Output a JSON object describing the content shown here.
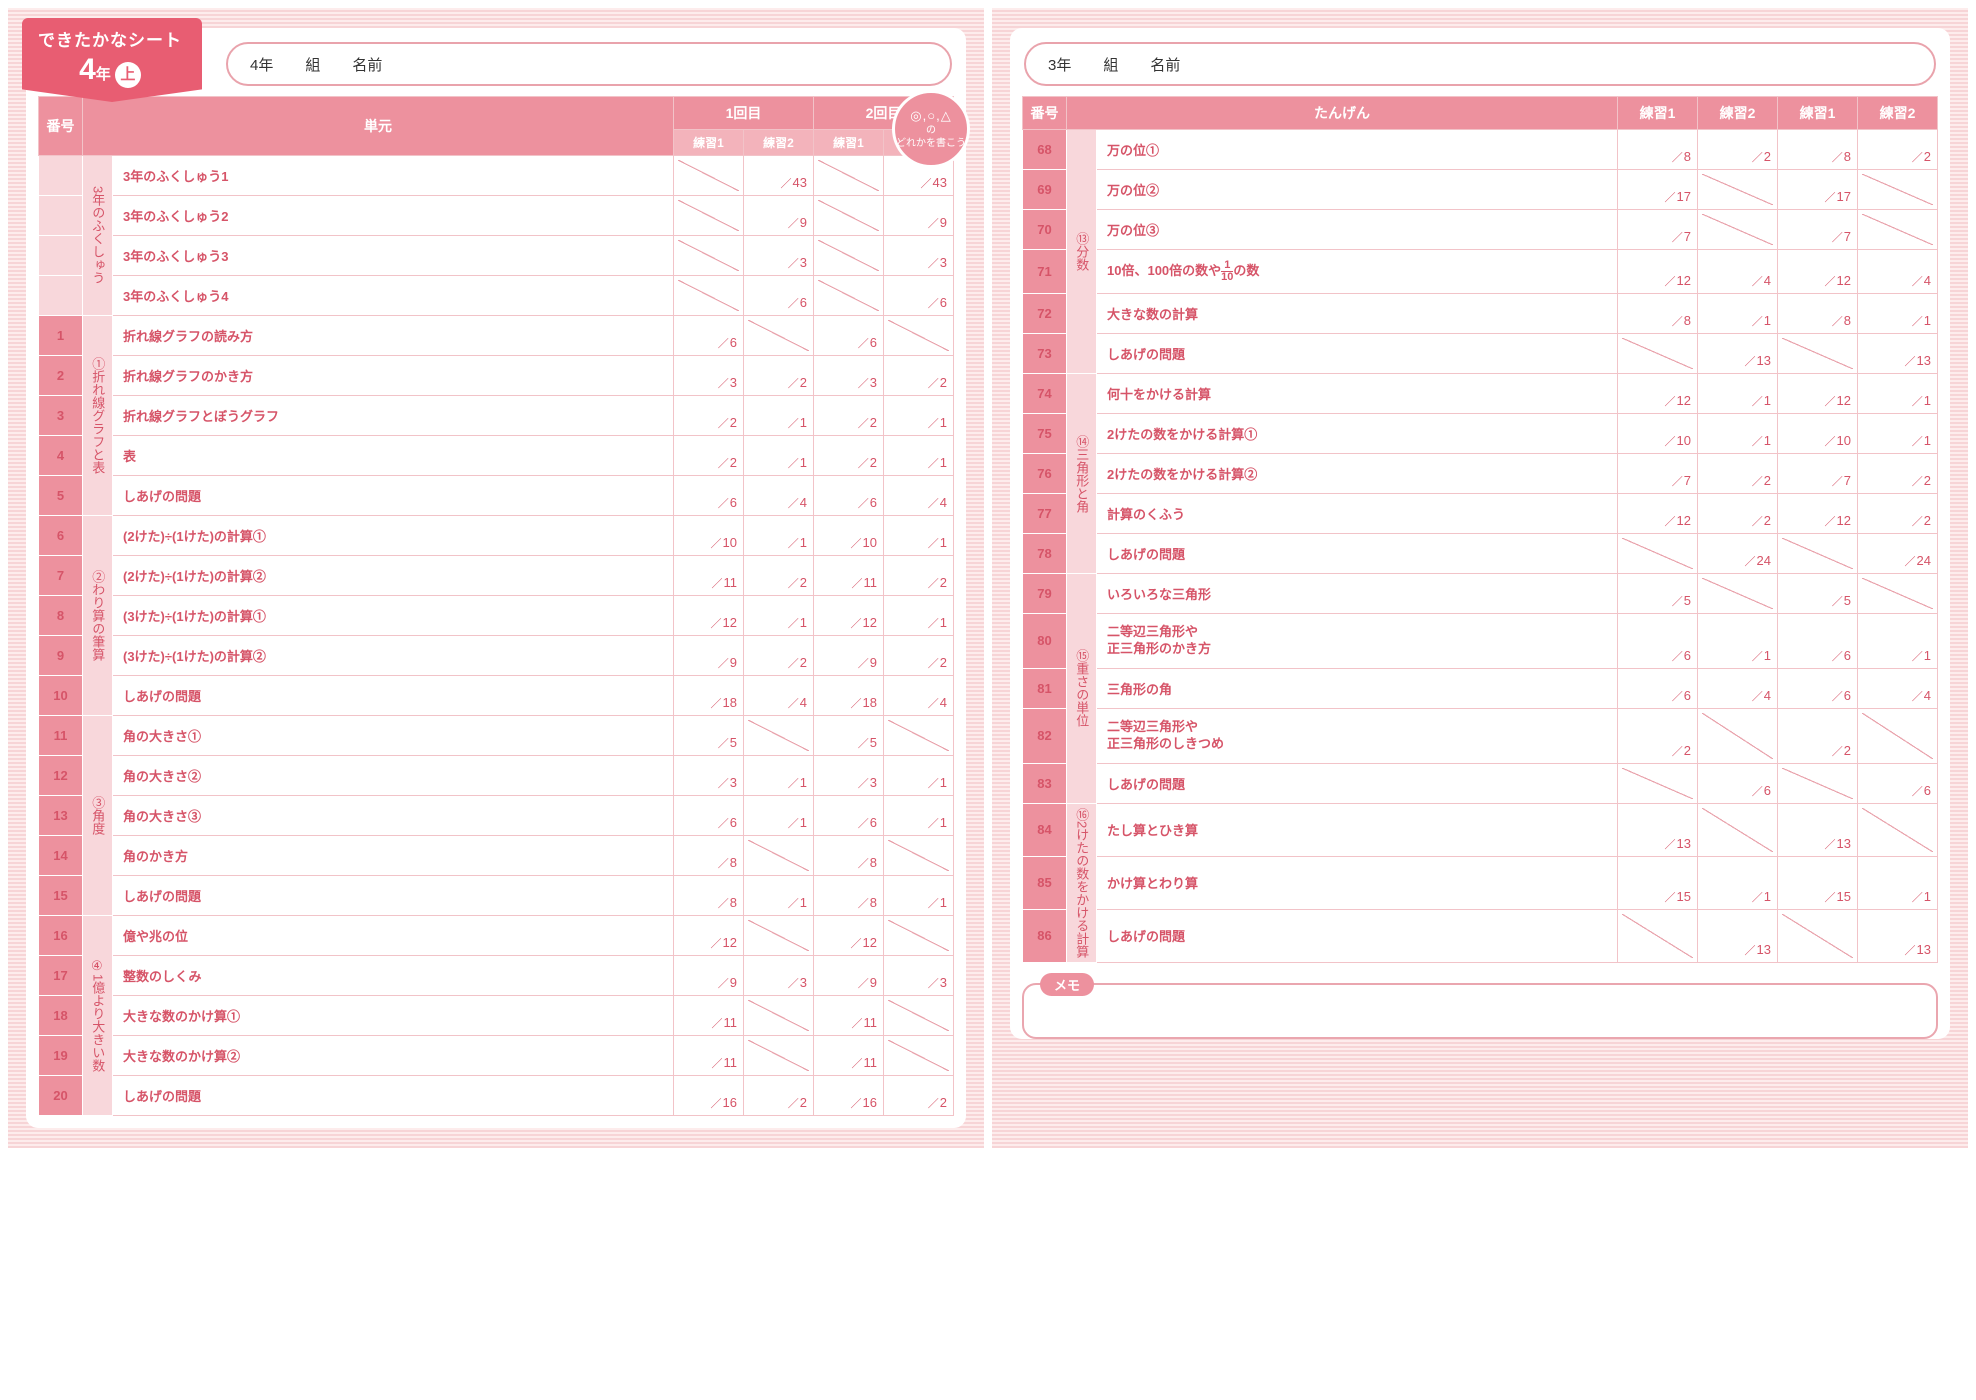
{
  "colors": {
    "accent": "#e85d72",
    "header_bg": "#ed919e",
    "subheader_bg": "#f3b3bb",
    "cat_bg": "#f8d7db",
    "border": "#f2c3c8",
    "text": "#d65468"
  },
  "left": {
    "ribbon": {
      "line1": "できたかなシート",
      "grade_big": "4",
      "grade_suffix": "年",
      "circle": "上"
    },
    "name_field": {
      "grade": "4年",
      "class": "組",
      "name": "名前"
    },
    "headers": {
      "num": "番号",
      "unit": "単元",
      "g1": "1回目",
      "g2": "2回目",
      "p1": "練習1",
      "p2": "練習2"
    },
    "badge": {
      "symbols": "◎,○,△",
      "suffix": "の",
      "line2": "どれかを書こう"
    },
    "categories": [
      {
        "label": "3年のふくしゅう",
        "start": 0,
        "span": 4
      },
      {
        "label": "①折れ線グラフと表",
        "start": 4,
        "span": 5
      },
      {
        "label": "②わり算の筆算",
        "start": 9,
        "span": 5
      },
      {
        "label": "③角度",
        "start": 14,
        "span": 5
      },
      {
        "label": "④1億より大きい数",
        "start": 19,
        "span": 5
      }
    ],
    "rows": [
      {
        "num": "",
        "unit": "3年のふくしゅう1",
        "s": [
          "",
          "43",
          "",
          "43"
        ],
        "diag": [
          1,
          0,
          1,
          0
        ]
      },
      {
        "num": "",
        "unit": "3年のふくしゅう2",
        "s": [
          "",
          "9",
          "",
          "9"
        ],
        "diag": [
          1,
          0,
          1,
          0
        ]
      },
      {
        "num": "",
        "unit": "3年のふくしゅう3",
        "s": [
          "",
          "3",
          "",
          "3"
        ],
        "diag": [
          1,
          0,
          1,
          0
        ]
      },
      {
        "num": "",
        "unit": "3年のふくしゅう4",
        "s": [
          "",
          "6",
          "",
          "6"
        ],
        "diag": [
          1,
          0,
          1,
          0
        ]
      },
      {
        "num": "1",
        "unit": "折れ線グラフの読み方",
        "s": [
          "6",
          "",
          "6",
          ""
        ],
        "diag": [
          0,
          1,
          0,
          1
        ]
      },
      {
        "num": "2",
        "unit": "折れ線グラフのかき方",
        "s": [
          "3",
          "2",
          "3",
          "2"
        ],
        "diag": [
          0,
          0,
          0,
          0
        ]
      },
      {
        "num": "3",
        "unit": "折れ線グラフとぼうグラフ",
        "s": [
          "2",
          "1",
          "2",
          "1"
        ],
        "diag": [
          0,
          0,
          0,
          0
        ]
      },
      {
        "num": "4",
        "unit": "表",
        "s": [
          "2",
          "1",
          "2",
          "1"
        ],
        "diag": [
          0,
          0,
          0,
          0
        ]
      },
      {
        "num": "5",
        "unit": "しあげの問題",
        "s": [
          "6",
          "4",
          "6",
          "4"
        ],
        "diag": [
          0,
          0,
          0,
          0
        ]
      },
      {
        "num": "6",
        "unit": "(2けた)÷(1けた)の計算①",
        "s": [
          "10",
          "1",
          "10",
          "1"
        ],
        "diag": [
          0,
          0,
          0,
          0
        ]
      },
      {
        "num": "7",
        "unit": "(2けた)÷(1けた)の計算②",
        "s": [
          "11",
          "2",
          "11",
          "2"
        ],
        "diag": [
          0,
          0,
          0,
          0
        ]
      },
      {
        "num": "8",
        "unit": "(3けた)÷(1けた)の計算①",
        "s": [
          "12",
          "1",
          "12",
          "1"
        ],
        "diag": [
          0,
          0,
          0,
          0
        ]
      },
      {
        "num": "9",
        "unit": "(3けた)÷(1けた)の計算②",
        "s": [
          "9",
          "2",
          "9",
          "2"
        ],
        "diag": [
          0,
          0,
          0,
          0
        ]
      },
      {
        "num": "10",
        "unit": "しあげの問題",
        "s": [
          "18",
          "4",
          "18",
          "4"
        ],
        "diag": [
          0,
          0,
          0,
          0
        ]
      },
      {
        "num": "11",
        "unit": "角の大きさ①",
        "s": [
          "5",
          "",
          "5",
          ""
        ],
        "diag": [
          0,
          1,
          0,
          1
        ]
      },
      {
        "num": "12",
        "unit": "角の大きさ②",
        "s": [
          "3",
          "1",
          "3",
          "1"
        ],
        "diag": [
          0,
          0,
          0,
          0
        ]
      },
      {
        "num": "13",
        "unit": "角の大きさ③",
        "s": [
          "6",
          "1",
          "6",
          "1"
        ],
        "diag": [
          0,
          0,
          0,
          0
        ]
      },
      {
        "num": "14",
        "unit": "角のかき方",
        "s": [
          "8",
          "",
          "8",
          ""
        ],
        "diag": [
          0,
          1,
          0,
          1
        ]
      },
      {
        "num": "15",
        "unit": "しあげの問題",
        "s": [
          "8",
          "1",
          "8",
          "1"
        ],
        "diag": [
          0,
          0,
          0,
          0
        ]
      },
      {
        "num": "16",
        "unit": "億や兆の位",
        "s": [
          "12",
          "",
          "12",
          ""
        ],
        "diag": [
          0,
          1,
          0,
          1
        ]
      },
      {
        "num": "17",
        "unit": "整数のしくみ",
        "s": [
          "9",
          "3",
          "9",
          "3"
        ],
        "diag": [
          0,
          0,
          0,
          0
        ]
      },
      {
        "num": "18",
        "unit": "大きな数のかけ算①",
        "s": [
          "11",
          "",
          "11",
          ""
        ],
        "diag": [
          0,
          1,
          0,
          1
        ]
      },
      {
        "num": "19",
        "unit": "大きな数のかけ算②",
        "s": [
          "11",
          "",
          "11",
          ""
        ],
        "diag": [
          0,
          1,
          0,
          1
        ]
      },
      {
        "num": "20",
        "unit": "しあげの問題",
        "s": [
          "16",
          "2",
          "16",
          "2"
        ],
        "diag": [
          0,
          0,
          0,
          0
        ]
      }
    ]
  },
  "right": {
    "name_field": {
      "grade": "3年",
      "class": "組",
      "name": "名前"
    },
    "headers": {
      "num": "番号",
      "unit": "たんげん",
      "p1": "練習1",
      "p2": "練習2"
    },
    "categories": [
      {
        "label": "⑬分数",
        "start": 0,
        "span": 6
      },
      {
        "label": "⑭三角形と角",
        "start": 6,
        "span": 5
      },
      {
        "label": "⑮重さの単位",
        "start": 11,
        "span": 5
      },
      {
        "label": "⑯2けたの数をかける計算",
        "start": 16,
        "span": 3
      }
    ],
    "rows": [
      {
        "num": "68",
        "unit": "万の位①",
        "s": [
          "8",
          "2",
          "8",
          "2"
        ],
        "diag": [
          0,
          0,
          0,
          0
        ]
      },
      {
        "num": "69",
        "unit": "万の位②",
        "s": [
          "17",
          "",
          "17",
          ""
        ],
        "diag": [
          0,
          1,
          0,
          1
        ]
      },
      {
        "num": "70",
        "unit": "万の位③",
        "s": [
          "7",
          "",
          "7",
          ""
        ],
        "diag": [
          0,
          1,
          0,
          1
        ]
      },
      {
        "num": "71",
        "unit": "10倍、100倍の数や|FRAC|の数",
        "frac": {
          "n": "1",
          "d": "10"
        },
        "s": [
          "12",
          "4",
          "12",
          "4"
        ],
        "diag": [
          0,
          0,
          0,
          0
        ]
      },
      {
        "num": "72",
        "unit": "大きな数の計算",
        "s": [
          "8",
          "1",
          "8",
          "1"
        ],
        "diag": [
          0,
          0,
          0,
          0
        ]
      },
      {
        "num": "73",
        "unit": "しあげの問題",
        "s": [
          "",
          "13",
          "",
          "13"
        ],
        "diag": [
          1,
          0,
          1,
          0
        ]
      },
      {
        "num": "74",
        "unit": "何十をかける計算",
        "s": [
          "12",
          "1",
          "12",
          "1"
        ],
        "diag": [
          0,
          0,
          0,
          0
        ]
      },
      {
        "num": "75",
        "unit": "2けたの数をかける計算①",
        "s": [
          "10",
          "1",
          "10",
          "1"
        ],
        "diag": [
          0,
          0,
          0,
          0
        ]
      },
      {
        "num": "76",
        "unit": "2けたの数をかける計算②",
        "s": [
          "7",
          "2",
          "7",
          "2"
        ],
        "diag": [
          0,
          0,
          0,
          0
        ]
      },
      {
        "num": "77",
        "unit": "計算のくふう",
        "s": [
          "12",
          "2",
          "12",
          "2"
        ],
        "diag": [
          0,
          0,
          0,
          0
        ]
      },
      {
        "num": "78",
        "unit": "しあげの問題",
        "s": [
          "",
          "24",
          "",
          "24"
        ],
        "diag": [
          1,
          0,
          1,
          0
        ]
      },
      {
        "num": "79",
        "unit": "いろいろな三角形",
        "s": [
          "5",
          "",
          "5",
          ""
        ],
        "diag": [
          0,
          1,
          0,
          1
        ]
      },
      {
        "num": "80",
        "unit": "二等辺三角形や\n正三角形のかき方",
        "s": [
          "6",
          "1",
          "6",
          "1"
        ],
        "diag": [
          0,
          0,
          0,
          0
        ]
      },
      {
        "num": "81",
        "unit": "三角形の角",
        "s": [
          "6",
          "4",
          "6",
          "4"
        ],
        "diag": [
          0,
          0,
          0,
          0
        ]
      },
      {
        "num": "82",
        "unit": "二等辺三角形や\n正三角形のしきつめ",
        "s": [
          "2",
          "",
          "2",
          ""
        ],
        "diag": [
          0,
          1,
          0,
          1
        ]
      },
      {
        "num": "83",
        "unit": "しあげの問題",
        "s": [
          "",
          "6",
          "",
          "6"
        ],
        "diag": [
          1,
          0,
          1,
          0
        ]
      },
      {
        "num": "84",
        "unit": "たし算とひき算",
        "s": [
          "13",
          "",
          "13",
          ""
        ],
        "diag": [
          0,
          1,
          0,
          1
        ]
      },
      {
        "num": "85",
        "unit": "かけ算とわり算",
        "s": [
          "15",
          "1",
          "15",
          "1"
        ],
        "diag": [
          0,
          0,
          0,
          0
        ]
      },
      {
        "num": "86",
        "unit": "しあげの問題",
        "s": [
          "",
          "13",
          "",
          "13"
        ],
        "diag": [
          1,
          0,
          1,
          0
        ]
      }
    ],
    "memo_label": "メモ"
  }
}
